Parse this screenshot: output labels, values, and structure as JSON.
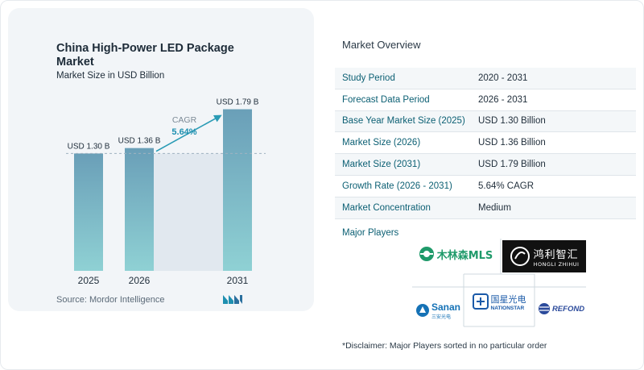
{
  "chart_data": {
    "type": "bar",
    "title": "China High-Power LED Package Market",
    "subtitle": "Market Size in USD Billion",
    "categories": [
      "2025",
      "2026",
      "2031"
    ],
    "values": [
      1.3,
      1.36,
      1.79
    ],
    "value_labels": [
      "USD 1.30 B",
      "USD 1.36 B",
      "USD 1.79 B"
    ],
    "ylim": [
      0,
      2.0
    ],
    "grid": false,
    "annotation": {
      "label": "CAGR",
      "value": "5.64%"
    },
    "reference_line_value": 1.3,
    "colors": {
      "bar_top": "#6a9fb8",
      "bar_bottom": "#8fd1d4",
      "gap_fill": "#e1e8ef",
      "arrow": "#2a9bb5",
      "cagr_label": "#7c8a96",
      "cagr_value": "#1e8fb0"
    }
  },
  "source": "Source: Mordor Intelligence",
  "logo_icon": "mordor-intelligence-logo",
  "overview": {
    "title": "Market Overview",
    "rows": [
      {
        "label": "Study Period",
        "value": "2020 - 2031"
      },
      {
        "label": "Forecast Data Period",
        "value": "2026 - 2031"
      },
      {
        "label": "Base Year Market Size (2025)",
        "value": "USD 1.30 Billion"
      },
      {
        "label": "Market Size (2026)",
        "value": "USD 1.36 Billion"
      },
      {
        "label": "Market Size (2031)",
        "value": "USD 1.79 Billion"
      },
      {
        "label": "Growth Rate (2026 - 2031)",
        "value": "5.64% CAGR"
      },
      {
        "label": "Market Concentration",
        "value": "Medium"
      }
    ]
  },
  "players": {
    "title": "Major Players",
    "logos": {
      "mls": "木林森MLS",
      "hongli_cn": "鸿利智汇",
      "hongli_en": "HONGLI ZHIHUI",
      "sanan": "Sanan",
      "sanan_cn": "三安光电",
      "nationstar_cn": "国星光电",
      "nationstar_en": "NATIONSTAR",
      "refond": "REFOND"
    }
  },
  "disclaimer": "*Disclaimer: Major Players sorted in no particular order"
}
